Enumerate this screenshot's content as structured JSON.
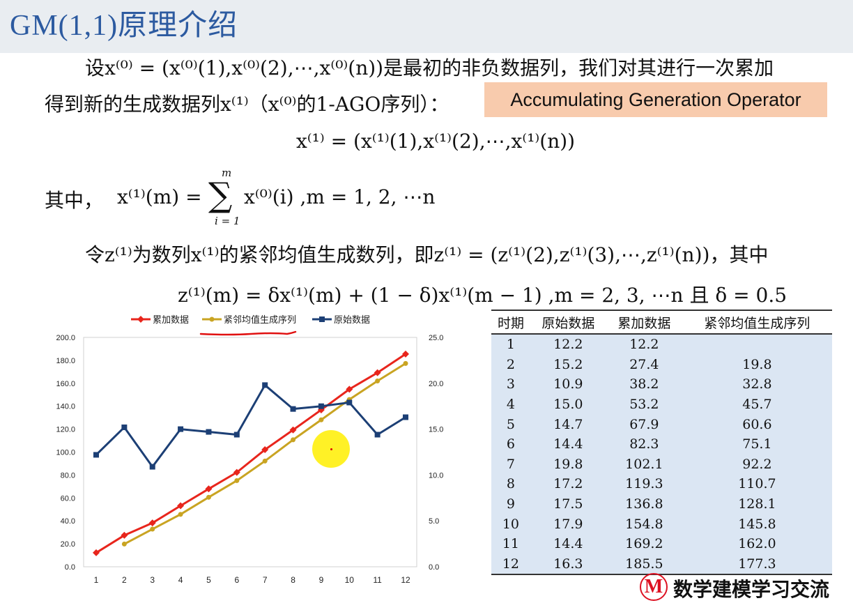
{
  "title": "GM(1,1)原理介绍",
  "body": {
    "line1": "设x⁽⁰⁾ = (x⁽⁰⁾(1),x⁽⁰⁾(2),⋯,x⁽⁰⁾(n))是最初的非负数据列，我们对其进行一次累加",
    "line2": "得到新的生成数据列x⁽¹⁾（x⁽⁰⁾的1-AGO序列）：",
    "badge": "Accumulating Generation Operator",
    "eq1": "x⁽¹⁾ = (x⁽¹⁾(1),x⁽¹⁾(2),⋯,x⁽¹⁾(n))",
    "qizhong": "其中，",
    "eq2_lhs": "x⁽¹⁾(m) =",
    "eq2_sum_top": "m",
    "eq2_sigma": "∑",
    "eq2_sum_bottom": "i = 1",
    "eq2_rhs": "x⁽⁰⁾(i) ,m = 1, 2, ⋯n",
    "line3": "令z⁽¹⁾为数列x⁽¹⁾的紧邻均值生成数列，即z⁽¹⁾ = (z⁽¹⁾(2),z⁽¹⁾(3),⋯,z⁽¹⁾(n))，其中",
    "eq3": "z⁽¹⁾(m) = δx⁽¹⁾(m) + (1 − δ)x⁽¹⁾(m − 1) ,m = 2, 3, ⋯n 且 δ = 0.5"
  },
  "logo": {
    "mark": "M",
    "text": "数学建模学习交流"
  },
  "colors": {
    "cumulative": "#e8251c",
    "adjacent_mean": "#c9a422",
    "original": "#1c3f75",
    "title": "#2c5aa0",
    "table_bg": "#dbe6f3",
    "badge_bg": "#f8cbad",
    "highlight": "#ffee00"
  },
  "table": {
    "headers": [
      "时期",
      "原始数据",
      "累加数据",
      "紧邻均值生成序列"
    ],
    "rows": [
      [
        "1",
        "12.2",
        "12.2",
        ""
      ],
      [
        "2",
        "15.2",
        "27.4",
        "19.8"
      ],
      [
        "3",
        "10.9",
        "38.2",
        "32.8"
      ],
      [
        "4",
        "15.0",
        "53.2",
        "45.7"
      ],
      [
        "5",
        "14.7",
        "67.9",
        "60.6"
      ],
      [
        "6",
        "14.4",
        "82.3",
        "75.1"
      ],
      [
        "7",
        "19.8",
        "102.1",
        "92.2"
      ],
      [
        "8",
        "17.2",
        "119.3",
        "110.7"
      ],
      [
        "9",
        "17.5",
        "136.8",
        "128.1"
      ],
      [
        "10",
        "17.9",
        "154.8",
        "145.8"
      ],
      [
        "11",
        "14.4",
        "169.2",
        "162.0"
      ],
      [
        "12",
        "16.3",
        "185.5",
        "177.3"
      ]
    ]
  },
  "chart_data": {
    "type": "line",
    "x": [
      1,
      2,
      3,
      4,
      5,
      6,
      7,
      8,
      9,
      10,
      11,
      12
    ],
    "y_left_ticks": [
      "0.0",
      "20.0",
      "40.0",
      "60.0",
      "80.0",
      "100.0",
      "120.0",
      "140.0",
      "160.0",
      "180.0",
      "200.0"
    ],
    "y_right_ticks": [
      "0.0",
      "5.0",
      "10.0",
      "15.0",
      "20.0",
      "25.0"
    ],
    "ylim_left": [
      0,
      200
    ],
    "ylim_right": [
      0,
      25
    ],
    "legend_position": "top",
    "grid": false,
    "series": [
      {
        "name": "累加数据",
        "axis": "left",
        "color": "#e8251c",
        "marker": "diamond",
        "values": [
          12.2,
          27.4,
          38.2,
          53.2,
          67.9,
          82.3,
          102.1,
          119.3,
          136.8,
          154.8,
          169.2,
          185.5
        ]
      },
      {
        "name": "紧邻均值生成序列",
        "axis": "left",
        "color": "#c9a422",
        "marker": "circle",
        "values": [
          null,
          19.8,
          32.8,
          45.7,
          60.6,
          75.1,
          92.2,
          110.7,
          128.1,
          145.8,
          162.0,
          177.3
        ]
      },
      {
        "name": "原始数据",
        "axis": "right",
        "color": "#1c3f75",
        "marker": "square",
        "values": [
          12.2,
          15.2,
          10.9,
          15.0,
          14.7,
          14.4,
          19.8,
          17.2,
          17.5,
          17.9,
          14.4,
          16.3
        ]
      }
    ]
  }
}
